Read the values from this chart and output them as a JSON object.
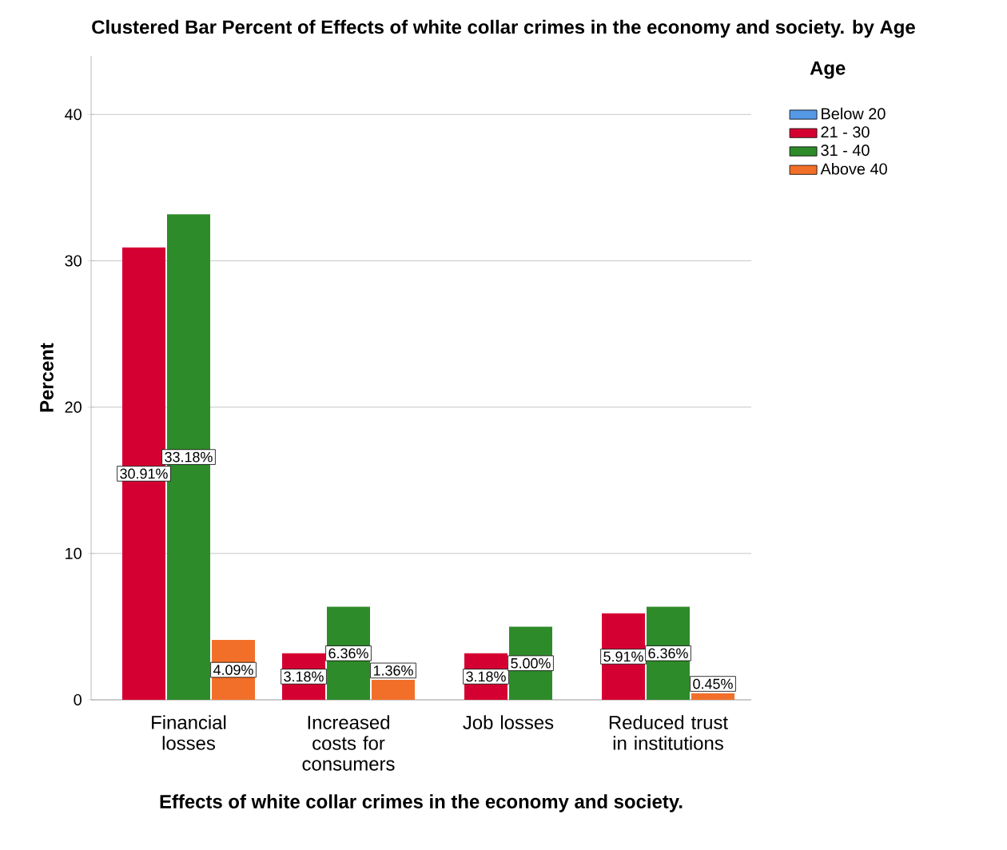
{
  "chart_data": {
    "type": "bar",
    "title": "Clustered Bar Percent of Effects of white collar crimes in the economy and society. by Age",
    "xlabel": "Effects of white collar crimes in the economy and society.",
    "ylabel": "Percent",
    "legend_title": "Age",
    "categories": [
      "Financial losses",
      "Increased costs for consumers",
      "Job losses",
      "Reduced trust in institutions"
    ],
    "series": [
      {
        "name": "Below 20",
        "color": "#5599e6",
        "values": [
          null,
          null,
          null,
          null
        ]
      },
      {
        "name": "21 - 30",
        "color": "#d50032",
        "values": [
          30.91,
          3.18,
          3.18,
          5.91
        ],
        "value_labels": [
          "30.91%",
          "3.18%",
          "3.18%",
          "5.91%"
        ]
      },
      {
        "name": "31 - 40",
        "color": "#2e8b2a",
        "values": [
          33.18,
          6.36,
          5.0,
          6.36
        ],
        "value_labels": [
          "33.18%",
          "6.36%",
          "5.00%",
          "6.36%"
        ]
      },
      {
        "name": "Above 40",
        "color": "#f26f2a",
        "values": [
          4.09,
          1.36,
          null,
          0.45
        ],
        "value_labels": [
          "4.09%",
          "1.36%",
          null,
          "0.45%"
        ]
      }
    ],
    "ylim": [
      0,
      44
    ],
    "yticks": [
      0,
      10,
      20,
      30,
      40
    ],
    "grid": "y",
    "legend": "right"
  }
}
